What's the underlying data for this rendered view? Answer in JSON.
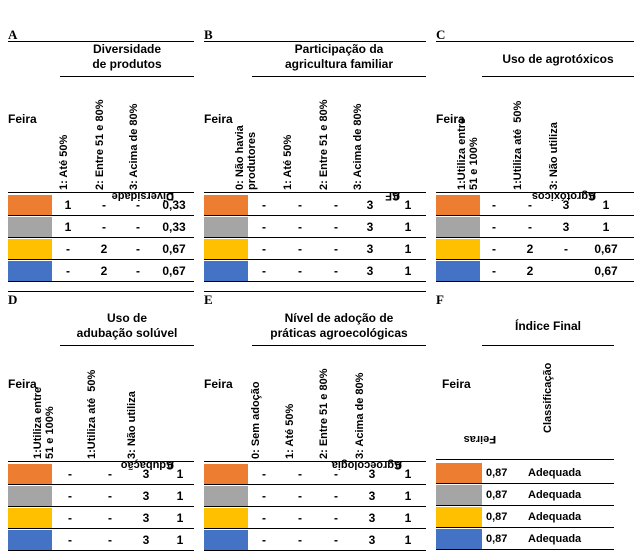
{
  "colors": [
    "#ED7D31",
    "#A5A5A5",
    "#FFC000",
    "#4472C4"
  ],
  "panels": {
    "A": {
      "letter": "A",
      "title": [
        "Diversidade",
        "de produtos"
      ],
      "feira": "Feira",
      "columns": [
        "1: Até 50%",
        "2: Entre 51 e 80%",
        "3: Acima de 80%"
      ],
      "c_main": "C",
      "c_sub": "Diversidade",
      "rows": [
        [
          "1",
          "-",
          "-",
          "0,33"
        ],
        [
          "1",
          "-",
          "-",
          "0,33"
        ],
        [
          "-",
          "2",
          "-",
          "0,67"
        ],
        [
          "-",
          "2",
          "-",
          "0,67"
        ]
      ]
    },
    "B": {
      "letter": "B",
      "title": [
        "Participação da",
        "agricultura familiar"
      ],
      "feira": "Feira",
      "columns": [
        "0: Não havia\nprodutores",
        "1: Até 50%",
        "2: Entre 51 e 80%",
        "3: Acima de 80%"
      ],
      "c_main": "C",
      "c_sub": "AF",
      "rows": [
        [
          "-",
          "-",
          "-",
          "3",
          "1"
        ],
        [
          "-",
          "-",
          "-",
          "3",
          "1"
        ],
        [
          "-",
          "-",
          "-",
          "3",
          "1"
        ],
        [
          "-",
          "-",
          "-",
          "3",
          "1"
        ]
      ]
    },
    "C": {
      "letter": "C",
      "title": [
        "Uso de agrotóxicos"
      ],
      "feira": "Feira",
      "columns": [
        "1:Utiliza entre\n51 e 100%",
        "1:Utiliza até  50%",
        "3: Não utiliza"
      ],
      "c_main": "C",
      "c_sub": "Agrotóxicos",
      "rows": [
        [
          "-",
          "-",
          "3",
          "1"
        ],
        [
          "-",
          "-",
          "3",
          "1"
        ],
        [
          "-",
          "2",
          "-",
          "0,67"
        ],
        [
          "-",
          "2",
          "",
          "0,67"
        ]
      ]
    },
    "D": {
      "letter": "D",
      "title": [
        "Uso de",
        "adubação solúvel"
      ],
      "feira": "Feira",
      "columns": [
        "1:Utiliza entre\n51 e 100%",
        "1:Utiliza até  50%",
        "3: Não utiliza"
      ],
      "c_main": "C",
      "c_sub": "Adubação",
      "rows": [
        [
          "-",
          "-",
          "3",
          "1"
        ],
        [
          "-",
          "-",
          "3",
          "1"
        ],
        [
          "-",
          "-",
          "3",
          "1"
        ],
        [
          "-",
          "-",
          "3",
          "1"
        ]
      ]
    },
    "E": {
      "letter": "E",
      "title": [
        "Nível de adoção de",
        "práticas agroecológicas"
      ],
      "feira": "Feira",
      "columns": [
        "0: Sem adoção",
        "1: Até 50%",
        "2: Entre 51 e 80%",
        "3: Acima de 80%"
      ],
      "c_main": "C",
      "c_sub": "Agroecologia",
      "rows": [
        [
          "-",
          "-",
          "-",
          "3",
          "1"
        ],
        [
          "-",
          "-",
          "-",
          "3",
          "1"
        ],
        [
          "-",
          "-",
          "-",
          "3",
          "1"
        ],
        [
          "-",
          "-",
          "-",
          "3",
          "1"
        ]
      ]
    },
    "F": {
      "letter": "F",
      "title": [
        "Índice Final"
      ],
      "feira": "Feira",
      "i_main": "I",
      "i_sub": "Feiras",
      "classificacao": "Classificação",
      "rows": [
        [
          "0,87",
          "Adequada"
        ],
        [
          "0,87",
          "Adequada"
        ],
        [
          "0,87",
          "Adequada"
        ],
        [
          "0,87",
          "Adequada"
        ]
      ]
    }
  }
}
